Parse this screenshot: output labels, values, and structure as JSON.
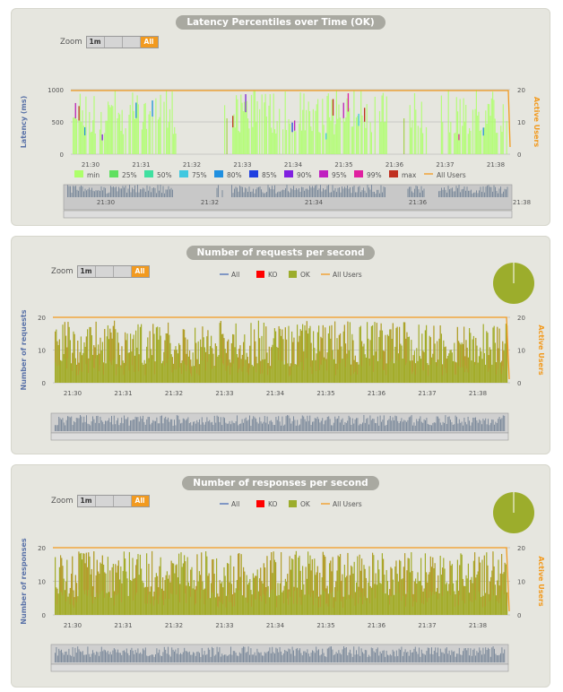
{
  "colors": {
    "ok": "#9acd32",
    "olive": "#9cad2c",
    "users": "#f29a1f",
    "latY": "#5b73a8",
    "all": "#4a6db5",
    "ko": "#ff0000",
    "nav": "#7d8b9c"
  },
  "zoom": {
    "label": "Zoom",
    "buttons": [
      "1m",
      "",
      "",
      "All"
    ]
  },
  "panels": [
    {
      "title": "Latency Percentiles over Time (OK)",
      "ylabel": "Latency (ms)",
      "y2label": "Active Users",
      "yticks": [
        "0",
        "500",
        "1000"
      ],
      "y2ticks": [
        "0",
        "10",
        "20"
      ],
      "xticks": [
        "21:30",
        "21:31",
        "21:32",
        "21:33",
        "21:34",
        "21:35",
        "21:36",
        "21:37",
        "21:38"
      ],
      "navticks": [
        "21:30",
        "21:32",
        "21:34",
        "21:36",
        "21:38"
      ],
      "legend": [
        "min",
        "25%",
        "50%",
        "75%",
        "80%",
        "85%",
        "90%",
        "95%",
        "99%",
        "max",
        "All Users"
      ]
    },
    {
      "title": "Number of requests per second",
      "ylabel": "Number of requests",
      "y2label": "Active Users",
      "yticks": [
        "0",
        "10",
        "20"
      ],
      "y2ticks": [
        "0",
        "10",
        "20"
      ],
      "xticks": [
        "21:30",
        "21:31",
        "21:32",
        "21:33",
        "21:34",
        "21:35",
        "21:36",
        "21:37",
        "21:38"
      ],
      "legend": [
        "All",
        "KO",
        "OK",
        "All Users"
      ]
    },
    {
      "title": "Number of responses per second",
      "ylabel": "Number of responses",
      "y2label": "Active Users",
      "yticks": [
        "0",
        "10",
        "20"
      ],
      "y2ticks": [
        "0",
        "10",
        "20"
      ],
      "xticks": [
        "21:30",
        "21:31",
        "21:32",
        "21:33",
        "21:34",
        "21:35",
        "21:36",
        "21:37",
        "21:38"
      ],
      "legend": [
        "All",
        "KO",
        "OK",
        "All Users"
      ]
    }
  ],
  "chart_data": [
    {
      "type": "bar",
      "title": "Latency Percentiles over Time (OK)",
      "ylabel": "Latency (ms)",
      "y2label": "Active Users",
      "ylim": [
        0,
        1000
      ],
      "y2lim": [
        0,
        20
      ],
      "x": [
        "21:30",
        "21:31",
        "21:32",
        "21:33",
        "21:34",
        "21:35",
        "21:36",
        "21:37",
        "21:38"
      ],
      "series": [
        {
          "name": "min"
        },
        {
          "name": "25%"
        },
        {
          "name": "50%"
        },
        {
          "name": "75%"
        },
        {
          "name": "80%"
        },
        {
          "name": "85%"
        },
        {
          "name": "90%"
        },
        {
          "name": "95%"
        },
        {
          "name": "99%"
        },
        {
          "name": "max"
        },
        {
          "name": "All Users",
          "values": [
            20,
            20,
            20,
            20,
            20,
            20,
            20,
            20,
            20
          ]
        }
      ]
    },
    {
      "type": "area",
      "title": "Number of requests per second",
      "ylabel": "Number of requests",
      "y2label": "Active Users",
      "ylim": [
        0,
        20
      ],
      "y2lim": [
        0,
        20
      ],
      "x": [
        "21:30",
        "21:31",
        "21:32",
        "21:33",
        "21:34",
        "21:35",
        "21:36",
        "21:37",
        "21:38"
      ],
      "series": [
        {
          "name": "All"
        },
        {
          "name": "KO"
        },
        {
          "name": "OK",
          "values": [
            12,
            11,
            13,
            12,
            13,
            12,
            12,
            12,
            10
          ]
        },
        {
          "name": "All Users",
          "values": [
            20,
            20,
            20,
            20,
            20,
            20,
            20,
            20,
            20
          ]
        }
      ],
      "pie": {
        "OK": 100,
        "KO": 0
      }
    },
    {
      "type": "area",
      "title": "Number of responses per second",
      "ylabel": "Number of responses",
      "y2label": "Active Users",
      "ylim": [
        0,
        20
      ],
      "y2lim": [
        0,
        20
      ],
      "x": [
        "21:30",
        "21:31",
        "21:32",
        "21:33",
        "21:34",
        "21:35",
        "21:36",
        "21:37",
        "21:38"
      ],
      "series": [
        {
          "name": "All"
        },
        {
          "name": "KO"
        },
        {
          "name": "OK",
          "values": [
            12,
            11,
            13,
            12,
            13,
            12,
            12,
            12,
            10
          ]
        },
        {
          "name": "All Users",
          "values": [
            20,
            20,
            20,
            20,
            20,
            20,
            20,
            20,
            20
          ]
        }
      ],
      "pie": {
        "OK": 100,
        "KO": 0
      }
    }
  ]
}
